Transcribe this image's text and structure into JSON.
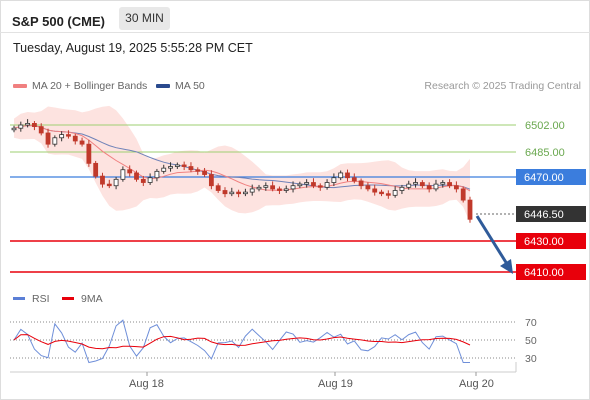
{
  "header": {
    "title": "S&P 500 (CME)",
    "timeframe": "30 MIN",
    "datetime": "Tuesday, August 19, 2025 5:55:28 PM CET"
  },
  "legend": {
    "ma_bb": "MA 20 + Bollinger Bands",
    "ma50": "MA 50",
    "research": "Research © 2025 Trading Central"
  },
  "levels": {
    "r2": "6502.00",
    "r1": "6485.00",
    "pivot": "6470.00",
    "last": "6446.50",
    "s1": "6430.00",
    "s2": "6410.00"
  },
  "rsi": {
    "label": "RSI",
    "ma_label": "9MA",
    "ticks": [
      "70",
      "50",
      "30"
    ]
  },
  "xaxis": {
    "labels": [
      "Aug 18",
      "Aug 19",
      "Aug 20"
    ]
  },
  "colors": {
    "support": "#e8000b",
    "pivot": "#3b7ddd",
    "resistance": "#9ecf72",
    "ma20": "#f08080",
    "ma50": "#2a4a8e",
    "band_fill": "#fde3e0",
    "candle_up": "#333333",
    "candle_down": "#c0392b",
    "arrow": "#2f5b9a"
  },
  "chart_data": {
    "type": "candlestick",
    "price_levels": [
      6502.0,
      6485.0,
      6470.0,
      6446.5,
      6430.0,
      6410.0
    ],
    "close_series": [
      6500,
      6502,
      6503,
      6501,
      6497,
      6490,
      6494,
      6496,
      6495,
      6492,
      6490,
      6478,
      6470,
      6465,
      6464,
      6468,
      6474,
      6472,
      6468,
      6466,
      6469,
      6473,
      6475,
      6476,
      6477,
      6476,
      6474,
      6473,
      6471,
      6464,
      6461,
      6459,
      6460,
      6459,
      6460,
      6462,
      6463,
      6464,
      6462,
      6461,
      6462,
      6464,
      6465,
      6466,
      6464,
      6463,
      6466,
      6469,
      6472,
      6469,
      6467,
      6464,
      6462,
      6460,
      6459,
      6458,
      6461,
      6463,
      6465,
      6466,
      6464,
      6462,
      6465,
      6466,
      6464,
      6462,
      6455,
      6443
    ]
  }
}
